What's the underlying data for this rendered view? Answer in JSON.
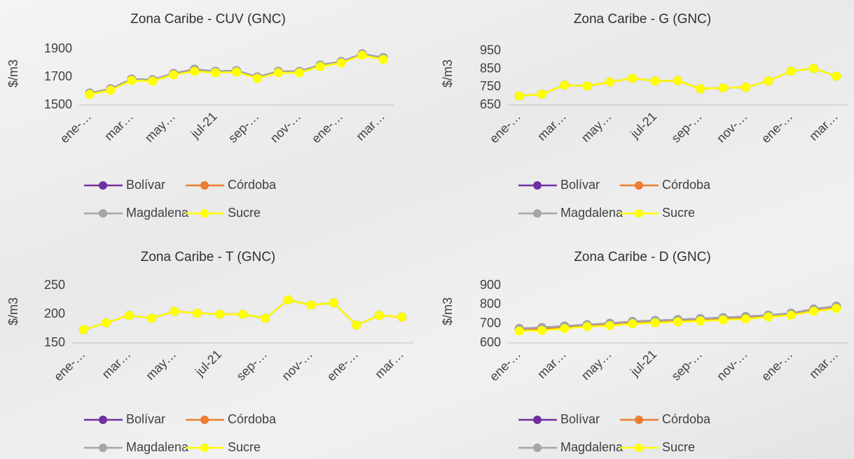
{
  "chart_data": [
    {
      "type": "line",
      "title": "Zona Caribe - CUV (GNC)",
      "y_label": "$/m3",
      "categories": [
        "ene-…",
        null,
        "mar…",
        null,
        "may…",
        null,
        "jul-21",
        null,
        "sep-…",
        null,
        "nov-…",
        null,
        "ene-…",
        null,
        "mar…"
      ],
      "ylim": [
        1500,
        1950
      ],
      "yticks": [
        1500,
        1700,
        1900
      ],
      "legend": "bottom",
      "series": [
        {
          "name": "Bolívar",
          "color": "#7030a0",
          "values": [
            1585,
            1615,
            1685,
            1680,
            1725,
            1755,
            1740,
            1745,
            1700,
            1740,
            1740,
            1785,
            1810,
            1865,
            1838
          ]
        },
        {
          "name": "Córdoba",
          "color": "#ed7d31",
          "values": [
            1578,
            1607,
            1677,
            1672,
            1717,
            1742,
            1732,
            1737,
            1692,
            1732,
            1732,
            1777,
            1802,
            1857,
            1828
          ]
        },
        {
          "name": "Magdalena",
          "color": "#a5a5a5",
          "values": [
            1585,
            1615,
            1685,
            1680,
            1725,
            1755,
            1740,
            1745,
            1700,
            1740,
            1740,
            1785,
            1810,
            1865,
            1838
          ]
        },
        {
          "name": "Sucre",
          "color": "#ffff00",
          "values": [
            1575,
            1605,
            1675,
            1670,
            1715,
            1740,
            1730,
            1735,
            1690,
            1730,
            1730,
            1775,
            1800,
            1855,
            1825
          ]
        }
      ]
    },
    {
      "type": "line",
      "title": "Zona Caribe - G (GNC)",
      "y_label": "$/m3",
      "categories": [
        "ene-…",
        null,
        "mar…",
        null,
        "may…",
        null,
        "jul-21",
        null,
        "sep-…",
        null,
        "nov-…",
        null,
        "ene-…",
        null,
        "mar…"
      ],
      "ylim": [
        650,
        1000
      ],
      "yticks": [
        650,
        750,
        850,
        950
      ],
      "legend": "bottom",
      "series": [
        {
          "name": "Bolívar",
          "color": "#7030a0",
          "values": [
            700,
            710,
            760,
            755,
            778,
            798,
            783,
            785,
            740,
            745,
            748,
            783,
            838,
            853,
            810
          ]
        },
        {
          "name": "Córdoba",
          "color": "#ed7d31",
          "values": [
            700,
            710,
            760,
            755,
            778,
            798,
            783,
            785,
            740,
            745,
            748,
            783,
            838,
            853,
            810
          ]
        },
        {
          "name": "Magdalena",
          "color": "#a5a5a5",
          "values": [
            700,
            710,
            760,
            755,
            778,
            798,
            783,
            785,
            740,
            745,
            748,
            783,
            838,
            853,
            810
          ]
        },
        {
          "name": "Sucre",
          "color": "#ffff00",
          "values": [
            700,
            710,
            760,
            755,
            778,
            798,
            783,
            785,
            740,
            745,
            748,
            783,
            838,
            853,
            810
          ]
        }
      ]
    },
    {
      "type": "line",
      "title": "Zona Caribe - T (GNC)",
      "y_label": "$/m3",
      "categories": [
        "ene-…",
        null,
        "mar…",
        null,
        "may…",
        null,
        "jul-21",
        null,
        "sep-…",
        null,
        "nov-…",
        null,
        "ene-…",
        null,
        "mar…"
      ],
      "ylim": [
        150,
        260
      ],
      "yticks": [
        150,
        200,
        250
      ],
      "legend": "bottom",
      "series": [
        {
          "name": "Bolívar",
          "color": "#7030a0",
          "values": [
            173,
            185,
            198,
            193,
            205,
            202,
            200,
            200,
            193,
            225,
            216,
            220,
            181,
            198,
            195
          ]
        },
        {
          "name": "Córdoba",
          "color": "#ed7d31",
          "values": [
            173,
            185,
            198,
            193,
            205,
            202,
            200,
            200,
            193,
            225,
            216,
            220,
            181,
            198,
            195
          ]
        },
        {
          "name": "Magdalena",
          "color": "#a5a5a5",
          "values": [
            173,
            185,
            198,
            193,
            205,
            202,
            200,
            200,
            193,
            225,
            216,
            220,
            181,
            198,
            195
          ]
        },
        {
          "name": "Sucre",
          "color": "#ffff00",
          "values": [
            173,
            185,
            198,
            193,
            205,
            202,
            200,
            200,
            193,
            225,
            216,
            220,
            181,
            198,
            195
          ]
        }
      ]
    },
    {
      "type": "line",
      "title": "Zona Caribe - D (GNC)",
      "y_label": "$/m3",
      "categories": [
        "ene-…",
        null,
        "mar…",
        null,
        "may…",
        null,
        "jul-21",
        null,
        "sep-…",
        null,
        "nov-…",
        null,
        "ene-…",
        null,
        "mar…"
      ],
      "ylim": [
        600,
        930
      ],
      "yticks": [
        600,
        700,
        800,
        900
      ],
      "legend": "bottom",
      "series": [
        {
          "name": "Bolívar",
          "color": "#7030a0",
          "values": [
            675,
            680,
            688,
            695,
            702,
            712,
            717,
            722,
            727,
            732,
            738,
            745,
            755,
            777,
            792
          ]
        },
        {
          "name": "Córdoba",
          "color": "#ed7d31",
          "values": [
            668,
            672,
            681,
            689,
            695,
            705,
            710,
            715,
            720,
            725,
            730,
            739,
            749,
            770,
            785
          ]
        },
        {
          "name": "Magdalena",
          "color": "#a5a5a5",
          "values": [
            675,
            680,
            688,
            695,
            702,
            712,
            717,
            722,
            727,
            732,
            738,
            745,
            755,
            777,
            792
          ]
        },
        {
          "name": "Sucre",
          "color": "#ffff00",
          "values": [
            662,
            665,
            675,
            685,
            690,
            700,
            705,
            710,
            715,
            720,
            725,
            735,
            745,
            765,
            780
          ]
        }
      ]
    }
  ]
}
